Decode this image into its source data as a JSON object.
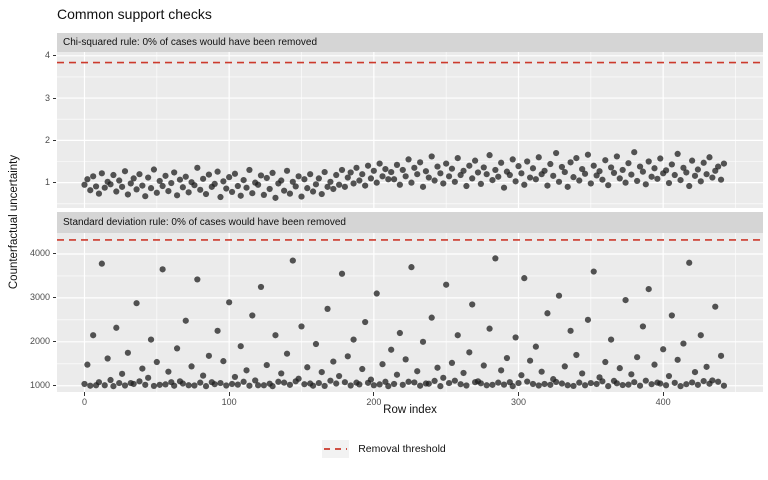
{
  "title": "Common support checks",
  "colors": {
    "threshold": "#CC3A2C",
    "point": "#1E1E1E",
    "panel_bg": "#EBEBEB",
    "strip_bg": "#D5D5D5",
    "grid": "#FFFFFF",
    "tick_text": "#4D4D4D",
    "legend_key_bg": "#F2F2F2"
  },
  "chart_data": {
    "type": "scatter",
    "title": "Common support checks",
    "xlabel": "Row index",
    "ylabel": "Counterfactual uncertainty",
    "grid": true,
    "legend": {
      "position": "bottom",
      "entries": [
        {
          "label": "Removal threshold",
          "style": "dashed-line",
          "color": "#CC3A2C"
        }
      ]
    },
    "xlim": [
      -19,
      469
    ],
    "xticks": [
      0,
      100,
      200,
      300,
      400
    ],
    "x": [
      0,
      2,
      4,
      6,
      8,
      10,
      12,
      14,
      16,
      18,
      20,
      22,
      24,
      26,
      28,
      30,
      32,
      34,
      36,
      38,
      40,
      42,
      44,
      46,
      48,
      50,
      52,
      54,
      56,
      58,
      60,
      62,
      64,
      66,
      68,
      70,
      72,
      74,
      76,
      78,
      80,
      82,
      84,
      86,
      88,
      90,
      92,
      94,
      96,
      98,
      100,
      102,
      104,
      106,
      108,
      110,
      112,
      114,
      116,
      118,
      120,
      122,
      124,
      126,
      128,
      130,
      132,
      134,
      136,
      138,
      140,
      142,
      144,
      146,
      148,
      150,
      152,
      154,
      156,
      158,
      160,
      162,
      164,
      166,
      168,
      170,
      172,
      174,
      176,
      178,
      180,
      182,
      184,
      186,
      188,
      190,
      192,
      194,
      196,
      198,
      200,
      202,
      204,
      206,
      208,
      210,
      212,
      214,
      216,
      218,
      220,
      222,
      224,
      226,
      228,
      230,
      232,
      234,
      236,
      238,
      240,
      242,
      244,
      246,
      248,
      250,
      252,
      254,
      256,
      258,
      260,
      262,
      264,
      266,
      268,
      270,
      272,
      274,
      276,
      278,
      280,
      282,
      284,
      286,
      288,
      290,
      292,
      294,
      296,
      298,
      300,
      302,
      304,
      306,
      308,
      310,
      312,
      314,
      316,
      318,
      320,
      322,
      324,
      326,
      328,
      330,
      332,
      334,
      336,
      338,
      340,
      342,
      344,
      346,
      348,
      350,
      352,
      354,
      356,
      358,
      360,
      362,
      364,
      366,
      368,
      370,
      372,
      374,
      376,
      378,
      380,
      382,
      384,
      386,
      388,
      390,
      392,
      394,
      396,
      398,
      400,
      402,
      404,
      406,
      408,
      410,
      412,
      414,
      416,
      418,
      420,
      422,
      424,
      426,
      428,
      430,
      432,
      434,
      436,
      438,
      440,
      442
    ],
    "panels": [
      {
        "facet_label": "Chi-squared rule: 0% of cases would have been removed",
        "threshold": 3.84,
        "ylim": [
          0.4,
          4.09
        ],
        "yticks": [
          1,
          2,
          3,
          4
        ],
        "y": [
          0.95,
          1.08,
          0.82,
          1.15,
          0.91,
          0.74,
          1.22,
          0.88,
          1.02,
          0.96,
          1.18,
          0.79,
          1.05,
          0.9,
          1.27,
          0.72,
          0.98,
          1.1,
          0.84,
          1.2,
          0.93,
          0.68,
          1.12,
          0.87,
          1.31,
          0.76,
          1.04,
          0.92,
          1.16,
          0.8,
          0.99,
          1.24,
          0.7,
          1.07,
          0.89,
          1.14,
          0.77,
          1.01,
          0.94,
          1.35,
          0.83,
          1.09,
          0.73,
          1.19,
          0.9,
          0.97,
          1.26,
          0.66,
          1.03,
          0.86,
          1.13,
          0.78,
          1.21,
          0.92,
          0.69,
          1.06,
          0.88,
          1.3,
          0.75,
          1.0,
          0.95,
          1.17,
          0.71,
          1.11,
          0.85,
          1.23,
          0.64,
          0.98,
          1.05,
          0.81,
          1.28,
          0.74,
          1.02,
          0.91,
          1.15,
          0.67,
          1.08,
          0.87,
          1.2,
          0.79,
          0.96,
          1.1,
          0.73,
          1.25,
          0.9,
          1.02,
          0.85,
          1.18,
          0.95,
          1.3,
          0.9,
          1.12,
          1.24,
          0.98,
          1.35,
          1.05,
          1.2,
          0.93,
          1.4,
          1.1,
          1.28,
          1.0,
          1.45,
          1.15,
          1.32,
          1.08,
          1.25,
          1.08,
          1.42,
          0.95,
          1.3,
          1.15,
          1.55,
          1.0,
          1.35,
          1.2,
          1.48,
          0.9,
          1.27,
          1.12,
          1.62,
          1.05,
          1.38,
          1.22,
          0.98,
          1.45,
          1.15,
          1.33,
          1.02,
          1.58,
          1.18,
          1.28,
          0.92,
          1.4,
          1.1,
          1.52,
          1.24,
          0.97,
          1.36,
          1.2,
          1.65,
          1.06,
          1.3,
          1.14,
          1.47,
          0.88,
          1.26,
          1.18,
          1.55,
          1.03,
          1.39,
          1.22,
          0.95,
          1.5,
          1.12,
          1.34,
          1.08,
          1.6,
          1.2,
          1.28,
          0.93,
          1.44,
          1.16,
          1.7,
          1.02,
          1.37,
          1.25,
          0.9,
          1.48,
          1.13,
          1.58,
          1.05,
          1.32,
          1.21,
          1.66,
          0.98,
          1.4,
          1.17,
          1.27,
          1.07,
          1.53,
          0.94,
          1.36,
          1.23,
          1.62,
          1.1,
          1.3,
          1.0,
          1.46,
          1.19,
          1.72,
          1.04,
          1.38,
          1.26,
          0.96,
          1.5,
          1.14,
          1.34,
          1.09,
          1.57,
          1.22,
          1.29,
          0.99,
          1.43,
          1.18,
          1.68,
          1.06,
          1.35,
          1.24,
          0.92,
          1.52,
          1.16,
          1.31,
          1.03,
          1.47,
          1.2,
          1.6,
          1.12,
          1.28,
          1.38,
          1.07,
          1.45
        ]
      },
      {
        "facet_label": "Standard deviation rule: 0% of cases would have been removed",
        "threshold": 4320,
        "ylim": [
          857,
          4478
        ],
        "yticks": [
          1000,
          2000,
          3000,
          4000
        ],
        "y": [
          1040,
          1480,
          1000,
          2150,
          1010,
          1080,
          3780,
          1010,
          1620,
          1130,
          990,
          2320,
          1060,
          1270,
          1005,
          1750,
          1060,
          1040,
          2880,
          1100,
          1390,
          1020,
          1180,
          2050,
          995,
          1540,
          1020,
          3650,
          1030,
          1320,
          1080,
          1000,
          1850,
          1100,
          1050,
          2480,
          1010,
          1440,
          1005,
          3420,
          1070,
          1230,
          990,
          1680,
          1080,
          1035,
          2250,
          1060,
          1560,
          1005,
          2900,
          1040,
          1200,
          1025,
          1900,
          1090,
          1350,
          1000,
          2600,
          1120,
          1010,
          3250,
          1010,
          1470,
          1045,
          990,
          2150,
          1090,
          1280,
          1070,
          1730,
          1020,
          3850,
          1100,
          1160,
          2350,
          1035,
          1420,
          1050,
          1000,
          1950,
          1060,
          1310,
          995,
          2750,
          1115,
          1550,
          1050,
          1220,
          3550,
          1080,
          1670,
          1005,
          2050,
          1070,
          1030,
          1380,
          2450,
          1065,
          1140,
          1010,
          3100,
          1030,
          1490,
          1090,
          990,
          1820,
          1040,
          1250,
          2200,
          1020,
          1600,
          1090,
          3700,
          1075,
          1330,
          1000,
          2000,
          1050,
          1045,
          2550,
          1110,
          1410,
          990,
          1180,
          3300,
          1060,
          1520,
          1115,
          2150,
          1035,
          1290,
          1005,
          1760,
          2850,
          1080,
          1100,
          1055,
          1460,
          1010,
          2300,
          1020,
          3900,
          1070,
          1350,
          1025,
          1630,
          1080,
          990,
          2100,
          1060,
          1240,
          3450,
          1095,
          1570,
          1040,
          1890,
          1005,
          1320,
          1040,
          2650,
          1020,
          1150,
          1085,
          3050,
          1050,
          1440,
          1010,
          2250,
          995,
          1700,
          1070,
          1280,
          1010,
          2500,
          1060,
          3600,
          1040,
          1190,
          1100,
          1540,
          990,
          2050,
          1110,
          1055,
          1400,
          1015,
          2950,
          1025,
          1260,
          1080,
          1650,
          1000,
          2350,
          1115,
          3200,
          1035,
          1480,
          1070,
          1050,
          1830,
          1010,
          1220,
          2600,
          1065,
          1590,
          990,
          1960,
          1035,
          3800,
          1075,
          1310,
          1020,
          2150,
          1105,
          1430,
          1045,
          1120,
          2800,
          1090,
          1680,
          1000
        ]
      }
    ]
  }
}
